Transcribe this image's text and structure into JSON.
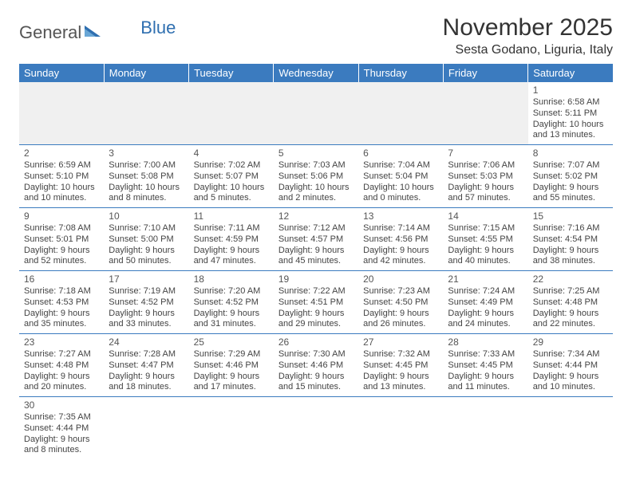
{
  "logo": {
    "text_general": "General",
    "text_blue": "Blue"
  },
  "title": "November 2025",
  "location": "Sesta Godano, Liguria, Italy",
  "day_headers": [
    "Sunday",
    "Monday",
    "Tuesday",
    "Wednesday",
    "Thursday",
    "Friday",
    "Saturday"
  ],
  "colors": {
    "header_bg": "#3b7bbf",
    "header_text": "#ffffff",
    "cell_border": "#3b7bbf",
    "logo_blue": "#2f6fb0",
    "text": "#444444"
  },
  "weeks": [
    [
      null,
      null,
      null,
      null,
      null,
      null,
      {
        "n": "1",
        "sunrise": "Sunrise: 6:58 AM",
        "sunset": "Sunset: 5:11 PM",
        "daylight": "Daylight: 10 hours and 13 minutes."
      }
    ],
    [
      {
        "n": "2",
        "sunrise": "Sunrise: 6:59 AM",
        "sunset": "Sunset: 5:10 PM",
        "daylight": "Daylight: 10 hours and 10 minutes."
      },
      {
        "n": "3",
        "sunrise": "Sunrise: 7:00 AM",
        "sunset": "Sunset: 5:08 PM",
        "daylight": "Daylight: 10 hours and 8 minutes."
      },
      {
        "n": "4",
        "sunrise": "Sunrise: 7:02 AM",
        "sunset": "Sunset: 5:07 PM",
        "daylight": "Daylight: 10 hours and 5 minutes."
      },
      {
        "n": "5",
        "sunrise": "Sunrise: 7:03 AM",
        "sunset": "Sunset: 5:06 PM",
        "daylight": "Daylight: 10 hours and 2 minutes."
      },
      {
        "n": "6",
        "sunrise": "Sunrise: 7:04 AM",
        "sunset": "Sunset: 5:04 PM",
        "daylight": "Daylight: 10 hours and 0 minutes."
      },
      {
        "n": "7",
        "sunrise": "Sunrise: 7:06 AM",
        "sunset": "Sunset: 5:03 PM",
        "daylight": "Daylight: 9 hours and 57 minutes."
      },
      {
        "n": "8",
        "sunrise": "Sunrise: 7:07 AM",
        "sunset": "Sunset: 5:02 PM",
        "daylight": "Daylight: 9 hours and 55 minutes."
      }
    ],
    [
      {
        "n": "9",
        "sunrise": "Sunrise: 7:08 AM",
        "sunset": "Sunset: 5:01 PM",
        "daylight": "Daylight: 9 hours and 52 minutes."
      },
      {
        "n": "10",
        "sunrise": "Sunrise: 7:10 AM",
        "sunset": "Sunset: 5:00 PM",
        "daylight": "Daylight: 9 hours and 50 minutes."
      },
      {
        "n": "11",
        "sunrise": "Sunrise: 7:11 AM",
        "sunset": "Sunset: 4:59 PM",
        "daylight": "Daylight: 9 hours and 47 minutes."
      },
      {
        "n": "12",
        "sunrise": "Sunrise: 7:12 AM",
        "sunset": "Sunset: 4:57 PM",
        "daylight": "Daylight: 9 hours and 45 minutes."
      },
      {
        "n": "13",
        "sunrise": "Sunrise: 7:14 AM",
        "sunset": "Sunset: 4:56 PM",
        "daylight": "Daylight: 9 hours and 42 minutes."
      },
      {
        "n": "14",
        "sunrise": "Sunrise: 7:15 AM",
        "sunset": "Sunset: 4:55 PM",
        "daylight": "Daylight: 9 hours and 40 minutes."
      },
      {
        "n": "15",
        "sunrise": "Sunrise: 7:16 AM",
        "sunset": "Sunset: 4:54 PM",
        "daylight": "Daylight: 9 hours and 38 minutes."
      }
    ],
    [
      {
        "n": "16",
        "sunrise": "Sunrise: 7:18 AM",
        "sunset": "Sunset: 4:53 PM",
        "daylight": "Daylight: 9 hours and 35 minutes."
      },
      {
        "n": "17",
        "sunrise": "Sunrise: 7:19 AM",
        "sunset": "Sunset: 4:52 PM",
        "daylight": "Daylight: 9 hours and 33 minutes."
      },
      {
        "n": "18",
        "sunrise": "Sunrise: 7:20 AM",
        "sunset": "Sunset: 4:52 PM",
        "daylight": "Daylight: 9 hours and 31 minutes."
      },
      {
        "n": "19",
        "sunrise": "Sunrise: 7:22 AM",
        "sunset": "Sunset: 4:51 PM",
        "daylight": "Daylight: 9 hours and 29 minutes."
      },
      {
        "n": "20",
        "sunrise": "Sunrise: 7:23 AM",
        "sunset": "Sunset: 4:50 PM",
        "daylight": "Daylight: 9 hours and 26 minutes."
      },
      {
        "n": "21",
        "sunrise": "Sunrise: 7:24 AM",
        "sunset": "Sunset: 4:49 PM",
        "daylight": "Daylight: 9 hours and 24 minutes."
      },
      {
        "n": "22",
        "sunrise": "Sunrise: 7:25 AM",
        "sunset": "Sunset: 4:48 PM",
        "daylight": "Daylight: 9 hours and 22 minutes."
      }
    ],
    [
      {
        "n": "23",
        "sunrise": "Sunrise: 7:27 AM",
        "sunset": "Sunset: 4:48 PM",
        "daylight": "Daylight: 9 hours and 20 minutes."
      },
      {
        "n": "24",
        "sunrise": "Sunrise: 7:28 AM",
        "sunset": "Sunset: 4:47 PM",
        "daylight": "Daylight: 9 hours and 18 minutes."
      },
      {
        "n": "25",
        "sunrise": "Sunrise: 7:29 AM",
        "sunset": "Sunset: 4:46 PM",
        "daylight": "Daylight: 9 hours and 17 minutes."
      },
      {
        "n": "26",
        "sunrise": "Sunrise: 7:30 AM",
        "sunset": "Sunset: 4:46 PM",
        "daylight": "Daylight: 9 hours and 15 minutes."
      },
      {
        "n": "27",
        "sunrise": "Sunrise: 7:32 AM",
        "sunset": "Sunset: 4:45 PM",
        "daylight": "Daylight: 9 hours and 13 minutes."
      },
      {
        "n": "28",
        "sunrise": "Sunrise: 7:33 AM",
        "sunset": "Sunset: 4:45 PM",
        "daylight": "Daylight: 9 hours and 11 minutes."
      },
      {
        "n": "29",
        "sunrise": "Sunrise: 7:34 AM",
        "sunset": "Sunset: 4:44 PM",
        "daylight": "Daylight: 9 hours and 10 minutes."
      }
    ],
    [
      {
        "n": "30",
        "sunrise": "Sunrise: 7:35 AM",
        "sunset": "Sunset: 4:44 PM",
        "daylight": "Daylight: 9 hours and 8 minutes."
      },
      null,
      null,
      null,
      null,
      null,
      null
    ]
  ]
}
